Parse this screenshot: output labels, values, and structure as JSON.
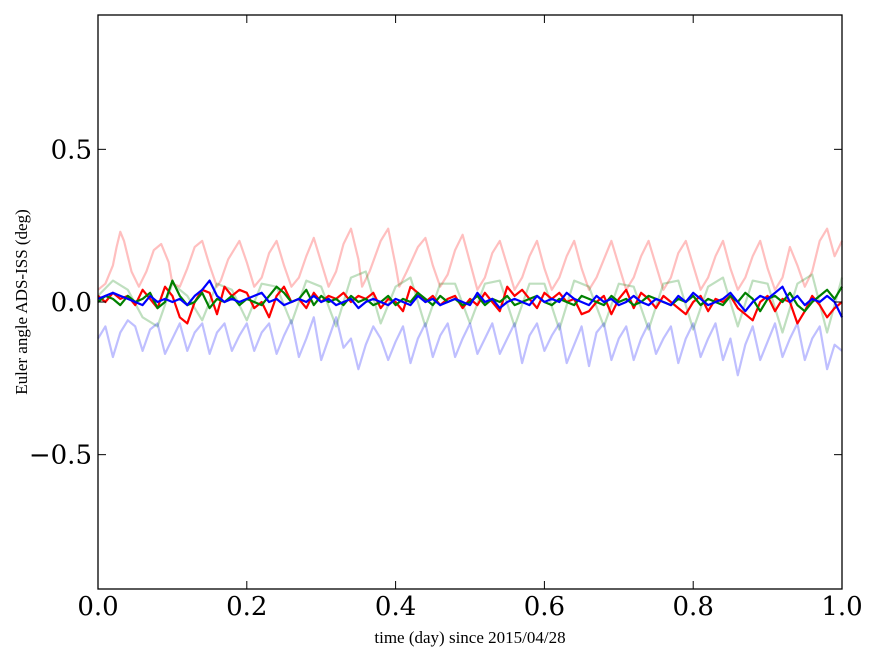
{
  "chart_data": {
    "type": "line",
    "xlabel": "time (day) since 2015/04/28",
    "ylabel": "Euler angle ADS-ISS (deg)",
    "xlim": [
      0.0,
      1.0
    ],
    "ylim": [
      -0.94,
      0.94
    ],
    "xticks": [
      0.0,
      0.2,
      0.4,
      0.6,
      0.8,
      1.0
    ],
    "xtick_labels": [
      "0.0",
      "0.2",
      "0.4",
      "0.6",
      "0.8",
      "1.0"
    ],
    "yticks": [
      -0.5,
      0.0,
      0.5
    ],
    "ytick_labels": [
      "−0.5",
      "0.0",
      "0.5"
    ],
    "grid": false,
    "series": [
      {
        "color": "#ff0000",
        "opacity": 0.25,
        "style": "faint",
        "x": [
          0.0,
          0.01,
          0.02,
          0.025,
          0.03,
          0.035,
          0.045,
          0.055,
          0.065,
          0.075,
          0.085,
          0.095,
          0.1,
          0.11,
          0.12,
          0.13,
          0.14,
          0.15,
          0.16,
          0.165,
          0.175,
          0.19,
          0.2,
          0.21,
          0.22,
          0.23,
          0.24,
          0.25,
          0.26,
          0.27,
          0.28,
          0.29,
          0.3,
          0.31,
          0.32,
          0.33,
          0.34,
          0.35,
          0.355,
          0.365,
          0.38,
          0.39,
          0.4,
          0.405,
          0.415,
          0.43,
          0.44,
          0.45,
          0.46,
          0.47,
          0.48,
          0.49,
          0.5,
          0.51,
          0.52,
          0.53,
          0.54,
          0.55,
          0.56,
          0.57,
          0.58,
          0.59,
          0.6,
          0.61,
          0.62,
          0.63,
          0.64,
          0.65,
          0.66,
          0.67,
          0.68,
          0.69,
          0.7,
          0.71,
          0.72,
          0.73,
          0.74,
          0.75,
          0.76,
          0.77,
          0.78,
          0.79,
          0.8,
          0.81,
          0.82,
          0.83,
          0.84,
          0.85,
          0.86,
          0.87,
          0.88,
          0.89,
          0.9,
          0.91,
          0.92,
          0.93,
          0.94,
          0.95,
          0.96,
          0.97,
          0.98,
          0.99,
          1.0
        ],
        "y": [
          0.04,
          0.06,
          0.12,
          0.18,
          0.23,
          0.2,
          0.1,
          0.05,
          0.1,
          0.17,
          0.19,
          0.13,
          0.06,
          0.05,
          0.11,
          0.18,
          0.2,
          0.12,
          0.05,
          0.07,
          0.14,
          0.2,
          0.13,
          0.05,
          0.08,
          0.16,
          0.2,
          0.12,
          0.05,
          0.08,
          0.15,
          0.21,
          0.13,
          0.05,
          0.1,
          0.19,
          0.24,
          0.14,
          0.05,
          0.1,
          0.2,
          0.24,
          0.12,
          0.05,
          0.1,
          0.18,
          0.21,
          0.12,
          0.05,
          0.09,
          0.17,
          0.22,
          0.13,
          0.04,
          0.08,
          0.16,
          0.2,
          0.12,
          0.04,
          0.08,
          0.15,
          0.2,
          0.11,
          0.04,
          0.08,
          0.15,
          0.2,
          0.11,
          0.04,
          0.08,
          0.14,
          0.2,
          0.12,
          0.04,
          0.08,
          0.15,
          0.2,
          0.12,
          0.04,
          0.08,
          0.16,
          0.2,
          0.12,
          0.04,
          0.08,
          0.15,
          0.2,
          0.11,
          0.04,
          0.08,
          0.15,
          0.2,
          0.11,
          0.04,
          0.08,
          0.18,
          0.12,
          0.05,
          0.1,
          0.2,
          0.24,
          0.15,
          0.2
        ]
      },
      {
        "color": "#008000",
        "opacity": 0.25,
        "style": "faint",
        "x": [
          0.0,
          0.02,
          0.04,
          0.06,
          0.08,
          0.1,
          0.12,
          0.14,
          0.16,
          0.18,
          0.2,
          0.22,
          0.24,
          0.26,
          0.28,
          0.3,
          0.32,
          0.34,
          0.36,
          0.38,
          0.4,
          0.42,
          0.44,
          0.46,
          0.48,
          0.5,
          0.52,
          0.54,
          0.56,
          0.58,
          0.6,
          0.62,
          0.64,
          0.66,
          0.68,
          0.7,
          0.72,
          0.74,
          0.76,
          0.78,
          0.8,
          0.82,
          0.84,
          0.86,
          0.88,
          0.9,
          0.92,
          0.94,
          0.96,
          0.98,
          1.0
        ],
        "y": [
          0.02,
          0.07,
          0.04,
          -0.05,
          -0.08,
          0.06,
          0.02,
          -0.06,
          0.06,
          0.04,
          -0.06,
          0.06,
          0.05,
          -0.07,
          0.07,
          0.05,
          -0.08,
          0.08,
          0.1,
          -0.07,
          0.05,
          0.08,
          -0.08,
          0.06,
          0.06,
          -0.07,
          0.06,
          0.07,
          -0.08,
          0.06,
          0.06,
          -0.09,
          0.07,
          0.05,
          -0.08,
          0.06,
          0.05,
          -0.09,
          0.06,
          0.07,
          -0.09,
          0.05,
          0.08,
          -0.08,
          0.07,
          0.06,
          -0.1,
          0.06,
          0.09,
          -0.1,
          0.08
        ]
      },
      {
        "color": "#0000ff",
        "opacity": 0.25,
        "style": "faint",
        "x": [
          0.0,
          0.01,
          0.02,
          0.03,
          0.04,
          0.05,
          0.06,
          0.07,
          0.08,
          0.09,
          0.1,
          0.11,
          0.12,
          0.13,
          0.14,
          0.15,
          0.16,
          0.17,
          0.18,
          0.19,
          0.2,
          0.21,
          0.22,
          0.23,
          0.24,
          0.25,
          0.26,
          0.27,
          0.28,
          0.29,
          0.3,
          0.31,
          0.32,
          0.33,
          0.34,
          0.35,
          0.36,
          0.37,
          0.38,
          0.39,
          0.4,
          0.41,
          0.42,
          0.43,
          0.44,
          0.45,
          0.46,
          0.47,
          0.48,
          0.49,
          0.5,
          0.51,
          0.52,
          0.53,
          0.54,
          0.55,
          0.56,
          0.57,
          0.58,
          0.59,
          0.6,
          0.61,
          0.62,
          0.63,
          0.64,
          0.65,
          0.66,
          0.67,
          0.68,
          0.69,
          0.7,
          0.71,
          0.72,
          0.73,
          0.74,
          0.75,
          0.76,
          0.77,
          0.78,
          0.79,
          0.8,
          0.81,
          0.82,
          0.83,
          0.84,
          0.85,
          0.86,
          0.87,
          0.88,
          0.89,
          0.9,
          0.91,
          0.92,
          0.93,
          0.94,
          0.95,
          0.96,
          0.97,
          0.98,
          0.99,
          1.0
        ],
        "y": [
          -0.12,
          -0.08,
          -0.18,
          -0.1,
          -0.06,
          -0.08,
          -0.16,
          -0.09,
          -0.07,
          -0.17,
          -0.12,
          -0.07,
          -0.16,
          -0.1,
          -0.07,
          -0.17,
          -0.1,
          -0.07,
          -0.16,
          -0.11,
          -0.07,
          -0.16,
          -0.1,
          -0.07,
          -0.17,
          -0.11,
          -0.06,
          -0.18,
          -0.12,
          -0.05,
          -0.19,
          -0.12,
          -0.05,
          -0.15,
          -0.12,
          -0.22,
          -0.14,
          -0.08,
          -0.12,
          -0.19,
          -0.13,
          -0.08,
          -0.2,
          -0.12,
          -0.07,
          -0.18,
          -0.11,
          -0.07,
          -0.18,
          -0.12,
          -0.07,
          -0.17,
          -0.12,
          -0.07,
          -0.17,
          -0.12,
          -0.07,
          -0.2,
          -0.11,
          -0.07,
          -0.16,
          -0.11,
          -0.07,
          -0.2,
          -0.14,
          -0.08,
          -0.21,
          -0.1,
          -0.07,
          -0.19,
          -0.12,
          -0.08,
          -0.19,
          -0.12,
          -0.07,
          -0.17,
          -0.12,
          -0.08,
          -0.2,
          -0.12,
          -0.07,
          -0.18,
          -0.12,
          -0.07,
          -0.19,
          -0.12,
          -0.24,
          -0.14,
          -0.08,
          -0.19,
          -0.13,
          -0.07,
          -0.18,
          -0.12,
          -0.07,
          -0.19,
          -0.12,
          -0.08,
          -0.22,
          -0.14,
          -0.16
        ]
      },
      {
        "color": "#ff0000",
        "opacity": 1.0,
        "style": "bold",
        "x": [
          0.0,
          0.01,
          0.02,
          0.03,
          0.04,
          0.05,
          0.06,
          0.07,
          0.08,
          0.09,
          0.1,
          0.11,
          0.12,
          0.13,
          0.14,
          0.15,
          0.16,
          0.17,
          0.18,
          0.19,
          0.2,
          0.21,
          0.22,
          0.23,
          0.24,
          0.25,
          0.26,
          0.27,
          0.28,
          0.29,
          0.3,
          0.31,
          0.32,
          0.33,
          0.34,
          0.35,
          0.36,
          0.37,
          0.38,
          0.39,
          0.4,
          0.41,
          0.42,
          0.43,
          0.44,
          0.45,
          0.46,
          0.47,
          0.48,
          0.49,
          0.5,
          0.51,
          0.52,
          0.53,
          0.54,
          0.55,
          0.56,
          0.57,
          0.58,
          0.59,
          0.6,
          0.61,
          0.62,
          0.63,
          0.64,
          0.65,
          0.66,
          0.67,
          0.68,
          0.69,
          0.7,
          0.71,
          0.72,
          0.73,
          0.74,
          0.75,
          0.76,
          0.77,
          0.78,
          0.79,
          0.8,
          0.81,
          0.82,
          0.83,
          0.84,
          0.85,
          0.86,
          0.87,
          0.88,
          0.89,
          0.9,
          0.91,
          0.92,
          0.93,
          0.94,
          0.95,
          0.96,
          0.97,
          0.98,
          0.99,
          1.0
        ],
        "y": [
          0.02,
          0.0,
          0.03,
          0.01,
          0.02,
          -0.01,
          0.04,
          0.01,
          -0.02,
          0.05,
          0.02,
          -0.05,
          -0.07,
          0.0,
          0.04,
          0.03,
          -0.04,
          0.05,
          0.02,
          0.04,
          0.03,
          -0.02,
          0.0,
          -0.05,
          0.02,
          0.05,
          0.0,
          0.01,
          -0.02,
          0.03,
          0.0,
          0.02,
          0.01,
          0.03,
          0.0,
          0.02,
          0.01,
          0.03,
          -0.02,
          0.01,
          0.0,
          -0.03,
          0.05,
          0.03,
          0.0,
          0.02,
          -0.01,
          0.01,
          0.02,
          -0.02,
          0.01,
          -0.01,
          0.03,
          0.0,
          -0.03,
          0.05,
          0.02,
          0.04,
          0.01,
          -0.02,
          0.03,
          0.01,
          0.03,
          0.0,
          0.01,
          -0.04,
          -0.03,
          0.0,
          0.02,
          -0.04,
          0.01,
          0.04,
          -0.02,
          0.03,
          0.01,
          -0.02,
          0.02,
          0.0,
          -0.02,
          -0.04,
          0.0,
          0.02,
          -0.03,
          0.01,
          0.0,
          0.02,
          -0.02,
          -0.04,
          -0.06,
          0.0,
          0.02,
          -0.03,
          0.01,
          0.0,
          -0.07,
          -0.03,
          0.02,
          -0.01,
          -0.05,
          -0.02,
          0.0
        ]
      },
      {
        "color": "#008000",
        "opacity": 1.0,
        "style": "bold",
        "x": [
          0.0,
          0.01,
          0.02,
          0.03,
          0.04,
          0.05,
          0.06,
          0.07,
          0.08,
          0.09,
          0.1,
          0.11,
          0.12,
          0.13,
          0.14,
          0.15,
          0.16,
          0.17,
          0.18,
          0.19,
          0.2,
          0.21,
          0.22,
          0.23,
          0.24,
          0.25,
          0.26,
          0.27,
          0.28,
          0.29,
          0.3,
          0.31,
          0.32,
          0.33,
          0.34,
          0.35,
          0.36,
          0.37,
          0.38,
          0.39,
          0.4,
          0.41,
          0.42,
          0.43,
          0.44,
          0.45,
          0.46,
          0.47,
          0.48,
          0.49,
          0.5,
          0.51,
          0.52,
          0.53,
          0.54,
          0.55,
          0.56,
          0.57,
          0.58,
          0.59,
          0.6,
          0.61,
          0.62,
          0.63,
          0.64,
          0.65,
          0.66,
          0.67,
          0.68,
          0.69,
          0.7,
          0.71,
          0.72,
          0.73,
          0.74,
          0.75,
          0.76,
          0.77,
          0.78,
          0.79,
          0.8,
          0.81,
          0.82,
          0.83,
          0.84,
          0.85,
          0.86,
          0.87,
          0.88,
          0.89,
          0.9,
          0.91,
          0.92,
          0.93,
          0.94,
          0.95,
          0.96,
          0.97,
          0.98,
          0.99,
          1.0
        ],
        "y": [
          0.0,
          0.02,
          0.01,
          -0.01,
          0.02,
          0.0,
          0.01,
          0.03,
          -0.02,
          0.0,
          0.07,
          0.02,
          -0.01,
          0.0,
          0.03,
          -0.02,
          0.01,
          0.0,
          0.02,
          -0.01,
          0.01,
          0.0,
          -0.01,
          0.02,
          0.05,
          0.03,
          0.0,
          0.01,
          0.04,
          -0.01,
          0.02,
          0.0,
          0.01,
          -0.01,
          0.02,
          0.0,
          0.01,
          -0.01,
          0.0,
          0.02,
          -0.01,
          0.01,
          0.0,
          0.03,
          0.01,
          -0.01,
          0.02,
          0.0,
          0.01,
          -0.01,
          0.0,
          0.02,
          -0.01,
          0.01,
          0.0,
          0.02,
          -0.01,
          0.0,
          0.01,
          0.02,
          0.0,
          -0.01,
          0.01,
          0.0,
          -0.01,
          0.02,
          0.01,
          0.0,
          -0.01,
          0.02,
          0.0,
          0.01,
          -0.01,
          0.0,
          0.02,
          0.01,
          0.0,
          -0.01,
          0.01,
          0.0,
          0.02,
          -0.01,
          0.01,
          0.0,
          -0.01,
          0.02,
          0.0,
          0.03,
          0.01,
          -0.03,
          0.01,
          0.02,
          0.0,
          0.03,
          -0.01,
          -0.03,
          0.0,
          0.02,
          0.04,
          0.01,
          0.05
        ]
      },
      {
        "color": "#0000ff",
        "opacity": 1.0,
        "style": "bold",
        "x": [
          0.0,
          0.01,
          0.02,
          0.03,
          0.04,
          0.05,
          0.06,
          0.07,
          0.08,
          0.09,
          0.1,
          0.11,
          0.12,
          0.13,
          0.14,
          0.15,
          0.16,
          0.17,
          0.18,
          0.19,
          0.2,
          0.21,
          0.22,
          0.23,
          0.24,
          0.25,
          0.26,
          0.27,
          0.28,
          0.29,
          0.3,
          0.31,
          0.32,
          0.33,
          0.34,
          0.35,
          0.36,
          0.37,
          0.38,
          0.39,
          0.4,
          0.41,
          0.42,
          0.43,
          0.44,
          0.45,
          0.46,
          0.47,
          0.48,
          0.49,
          0.5,
          0.51,
          0.52,
          0.53,
          0.54,
          0.55,
          0.56,
          0.57,
          0.58,
          0.59,
          0.6,
          0.61,
          0.62,
          0.63,
          0.64,
          0.65,
          0.66,
          0.67,
          0.68,
          0.69,
          0.7,
          0.71,
          0.72,
          0.73,
          0.74,
          0.75,
          0.76,
          0.77,
          0.78,
          0.79,
          0.8,
          0.81,
          0.82,
          0.83,
          0.84,
          0.85,
          0.86,
          0.87,
          0.88,
          0.89,
          0.9,
          0.91,
          0.92,
          0.93,
          0.94,
          0.95,
          0.96,
          0.97,
          0.98,
          0.99,
          1.0
        ],
        "y": [
          0.01,
          0.02,
          0.03,
          0.02,
          0.01,
          0.0,
          -0.01,
          0.02,
          0.0,
          0.01,
          0.0,
          0.01,
          -0.01,
          0.02,
          0.04,
          0.07,
          0.02,
          0.0,
          0.01,
          0.0,
          0.01,
          0.02,
          0.03,
          0.0,
          0.01,
          -0.01,
          0.0,
          0.01,
          0.0,
          0.02,
          0.0,
          0.01,
          -0.01,
          0.0,
          0.01,
          -0.02,
          0.0,
          0.01,
          0.0,
          -0.01,
          0.01,
          0.0,
          -0.01,
          0.02,
          0.0,
          0.01,
          -0.01,
          0.0,
          0.01,
          0.0,
          -0.01,
          0.03,
          0.0,
          0.01,
          -0.02,
          0.0,
          0.01,
          0.0,
          -0.01,
          0.02,
          0.0,
          0.01,
          0.0,
          0.03,
          0.01,
          0.0,
          -0.01,
          0.02,
          0.0,
          0.01,
          -0.01,
          0.0,
          0.02,
          0.0,
          -0.01,
          0.01,
          0.0,
          -0.01,
          0.02,
          0.0,
          0.03,
          0.01,
          -0.01,
          0.0,
          0.01,
          0.03,
          0.0,
          -0.03,
          0.0,
          0.02,
          0.01,
          0.03,
          0.05,
          0.0,
          0.02,
          -0.01,
          0.01,
          0.0,
          0.02,
          0.0,
          -0.05
        ]
      }
    ]
  }
}
